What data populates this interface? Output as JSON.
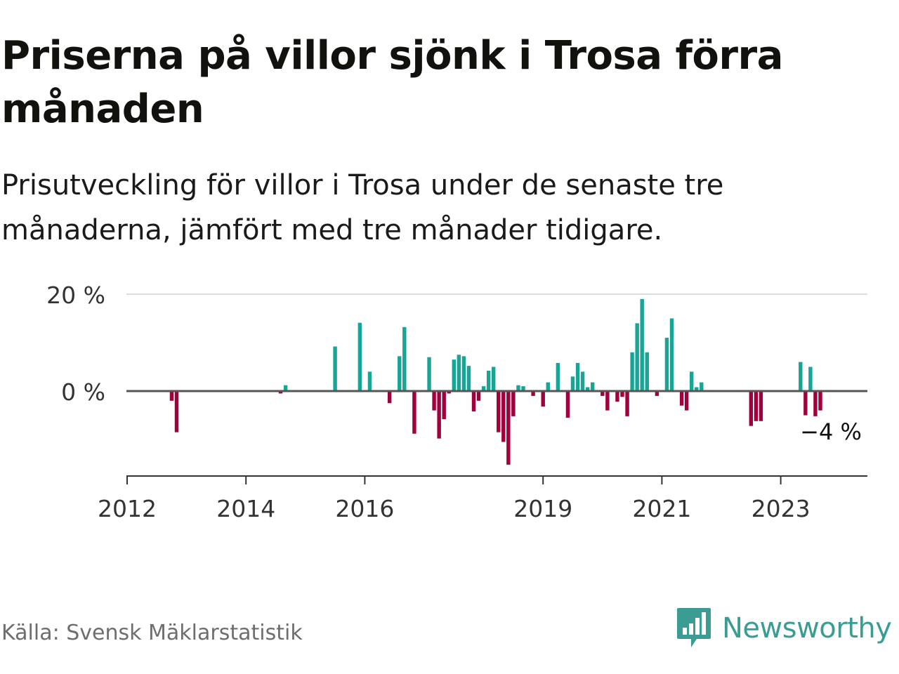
{
  "title": "Priserna på villor sjönk i Trosa förra månaden",
  "subtitle": "Prisutveckling för villor i Trosa under de senaste tre månaderna, jämfört med tre månader tidigare.",
  "source": "Källa: Svensk Mäklarstatistik",
  "brand": {
    "name": "Newsworthy",
    "icon": "bar-chart-speech-bubble-icon",
    "color": "#3a9c92"
  },
  "colors": {
    "positive": "#18a596",
    "negative": "#a0003c",
    "baseline": "#555555",
    "grid": "#dddddd"
  },
  "chart_data": {
    "type": "bar",
    "ylabel": "",
    "y_ticks": [
      "20 %",
      "0 %"
    ],
    "y_tick_values": [
      20,
      0
    ],
    "x_ticks": [
      "2012",
      "2014",
      "2016",
      "2019",
      "2021",
      "2023"
    ],
    "x_tick_values": [
      2012.0,
      2014.0,
      2016.0,
      2019.0,
      2021.0,
      2023.0
    ],
    "last_value_label": "−4 %",
    "grid": true,
    "points": [
      {
        "x": "2012-10",
        "y": -2.0
      },
      {
        "x": "2012-11",
        "y": -8.5
      },
      {
        "x": "2014-08",
        "y": -0.5
      },
      {
        "x": "2014-09",
        "y": 1.2
      },
      {
        "x": "2015-07",
        "y": 9.2
      },
      {
        "x": "2015-12",
        "y": 14.1
      },
      {
        "x": "2016-02",
        "y": 4.0
      },
      {
        "x": "2016-06",
        "y": -2.5
      },
      {
        "x": "2016-08",
        "y": 7.2
      },
      {
        "x": "2016-09",
        "y": 13.2
      },
      {
        "x": "2016-11",
        "y": -8.8
      },
      {
        "x": "2017-02",
        "y": 7.0
      },
      {
        "x": "2017-03",
        "y": -4.0
      },
      {
        "x": "2017-04",
        "y": -9.8
      },
      {
        "x": "2017-05",
        "y": -5.8
      },
      {
        "x": "2017-06",
        "y": -0.5
      },
      {
        "x": "2017-07",
        "y": 6.5
      },
      {
        "x": "2017-08",
        "y": 7.5
      },
      {
        "x": "2017-09",
        "y": 7.2
      },
      {
        "x": "2017-10",
        "y": 5.2
      },
      {
        "x": "2017-11",
        "y": -4.2
      },
      {
        "x": "2017-12",
        "y": -2.0
      },
      {
        "x": "2018-01",
        "y": 1.0
      },
      {
        "x": "2018-02",
        "y": 4.2
      },
      {
        "x": "2018-03",
        "y": 5.0
      },
      {
        "x": "2018-04",
        "y": -8.5
      },
      {
        "x": "2018-05",
        "y": -10.5
      },
      {
        "x": "2018-06",
        "y": -15.2
      },
      {
        "x": "2018-07",
        "y": -5.2
      },
      {
        "x": "2018-08",
        "y": 1.2
      },
      {
        "x": "2018-09",
        "y": 1.0
      },
      {
        "x": "2018-11",
        "y": -1.0
      },
      {
        "x": "2019-01",
        "y": -3.2
      },
      {
        "x": "2019-02",
        "y": 1.8
      },
      {
        "x": "2019-04",
        "y": 5.8
      },
      {
        "x": "2019-06",
        "y": -5.5
      },
      {
        "x": "2019-07",
        "y": 3.0
      },
      {
        "x": "2019-08",
        "y": 5.8
      },
      {
        "x": "2019-09",
        "y": 4.0
      },
      {
        "x": "2019-10",
        "y": 0.8
      },
      {
        "x": "2019-11",
        "y": 1.8
      },
      {
        "x": "2020-01",
        "y": -1.0
      },
      {
        "x": "2020-02",
        "y": -4.0
      },
      {
        "x": "2020-04",
        "y": -2.2
      },
      {
        "x": "2020-05",
        "y": -1.2
      },
      {
        "x": "2020-06",
        "y": -5.2
      },
      {
        "x": "2020-07",
        "y": 8.0
      },
      {
        "x": "2020-08",
        "y": 14.0
      },
      {
        "x": "2020-09",
        "y": 19.0
      },
      {
        "x": "2020-10",
        "y": 8.0
      },
      {
        "x": "2020-12",
        "y": -1.0
      },
      {
        "x": "2021-02",
        "y": 11.0
      },
      {
        "x": "2021-03",
        "y": 15.0
      },
      {
        "x": "2021-05",
        "y": -3.0
      },
      {
        "x": "2021-06",
        "y": -4.0
      },
      {
        "x": "2021-07",
        "y": 4.0
      },
      {
        "x": "2021-08",
        "y": 0.8
      },
      {
        "x": "2021-09",
        "y": 1.8
      },
      {
        "x": "2022-07",
        "y": -7.2
      },
      {
        "x": "2022-08",
        "y": -6.2
      },
      {
        "x": "2022-09",
        "y": -6.2
      },
      {
        "x": "2023-05",
        "y": 6.0
      },
      {
        "x": "2023-06",
        "y": -5.0
      },
      {
        "x": "2023-07",
        "y": 5.0
      },
      {
        "x": "2023-08",
        "y": -5.2
      },
      {
        "x": "2023-09",
        "y": -4.0
      }
    ]
  }
}
